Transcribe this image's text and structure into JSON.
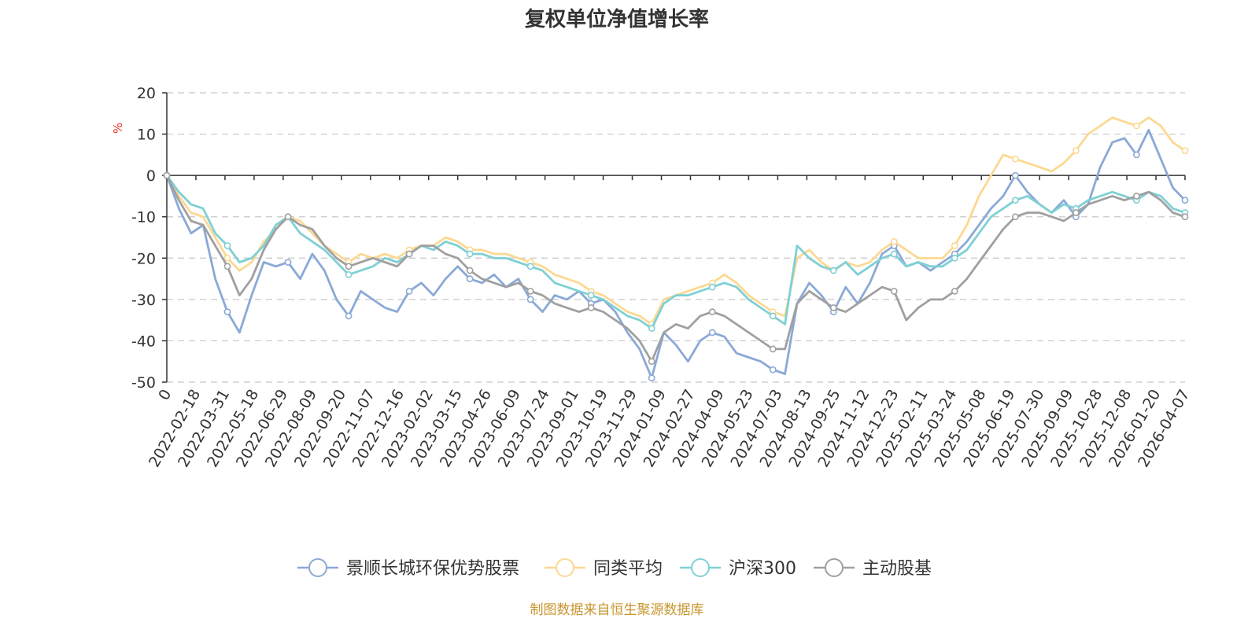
{
  "chart_data": {
    "type": "line",
    "title": "复权单位净值增长率",
    "ylabel": "%",
    "xlabel": "",
    "ylim": [
      -50,
      20
    ],
    "yticks": [
      20,
      10,
      0,
      -10,
      -20,
      -30,
      -40,
      -50
    ],
    "x_tick_labels": [
      "0",
      "2022-02-18",
      "2022-03-31",
      "2022-05-18",
      "2022-06-29",
      "2022-08-09",
      "2022-09-20",
      "2022-11-07",
      "2022-12-16",
      "2023-02-02",
      "2023-03-15",
      "2023-04-26",
      "2023-06-09",
      "2023-07-24",
      "2023-09-01",
      "2023-10-19",
      "2023-11-29",
      "2024-01-09",
      "2024-02-27",
      "2024-04-09",
      "2024-05-23",
      "2024-07-03",
      "2024-08-13",
      "2024-09-25",
      "2024-11-12",
      "2024-12-23",
      "2025-02-11",
      "2025-03-24",
      "2025-05-08",
      "2025-06-19",
      "2025-07-30",
      "2025-09-09",
      "2025-10-28",
      "2025-12-08",
      "2026-01-20",
      "2026-04-07"
    ],
    "grid": true,
    "legend_position": "bottom-center",
    "series": [
      {
        "name": "景顺长城环保优势股票",
        "color": "#8aa9d6",
        "values": [
          0,
          -8,
          -14,
          -12,
          -25,
          -33,
          -38,
          -29,
          -21,
          -22,
          -21,
          -25,
          -19,
          -23,
          -30,
          -34,
          -28,
          -30,
          -32,
          -33,
          -28,
          -26,
          -29,
          -25,
          -22,
          -25,
          -26,
          -24,
          -27,
          -25,
          -30,
          -33,
          -29,
          -30,
          -28,
          -31,
          -30,
          -33,
          -38,
          -42,
          -49,
          -38,
          -41,
          -45,
          -40,
          -38,
          -39,
          -43,
          -44,
          -45,
          -47,
          -48,
          -31,
          -26,
          -29,
          -33,
          -27,
          -31,
          -26,
          -19,
          -17,
          -22,
          -21,
          -23,
          -21,
          -19,
          -16,
          -12,
          -8,
          -5,
          0,
          -4,
          -7,
          -9,
          -6,
          -10,
          -7,
          2,
          8,
          9,
          5,
          11,
          4,
          -3,
          -6
        ]
      },
      {
        "name": "同类平均",
        "color": "#fcd892",
        "values": [
          0,
          -5,
          -9,
          -10,
          -15,
          -20,
          -23,
          -21,
          -16,
          -13,
          -10,
          -11,
          -14,
          -17,
          -19,
          -21,
          -19,
          -20,
          -19,
          -20,
          -18,
          -17,
          -17,
          -15,
          -16,
          -18,
          -18,
          -19,
          -19,
          -20,
          -21,
          -22,
          -24,
          -25,
          -26,
          -28,
          -29,
          -31,
          -33,
          -34,
          -36,
          -30,
          -29,
          -28,
          -27,
          -26,
          -24,
          -26,
          -29,
          -31,
          -33,
          -34,
          -20,
          -18,
          -21,
          -23,
          -21,
          -22,
          -21,
          -18,
          -16,
          -18,
          -20,
          -20,
          -20,
          -17,
          -12,
          -5,
          0,
          5,
          4,
          3,
          2,
          1,
          3,
          6,
          10,
          12,
          14,
          13,
          12,
          14,
          12,
          8,
          6
        ]
      },
      {
        "name": "沪深300",
        "color": "#7fd0d4",
        "values": [
          0,
          -4,
          -7,
          -8,
          -14,
          -17,
          -21,
          -20,
          -17,
          -12,
          -10,
          -14,
          -16,
          -18,
          -21,
          -24,
          -23,
          -22,
          -20,
          -21,
          -19,
          -17,
          -18,
          -16,
          -17,
          -19,
          -19,
          -20,
          -20,
          -21,
          -22,
          -23,
          -26,
          -27,
          -28,
          -29,
          -30,
          -32,
          -34,
          -35,
          -37,
          -31,
          -29,
          -29,
          -28,
          -27,
          -26,
          -27,
          -30,
          -32,
          -34,
          -36,
          -17,
          -20,
          -22,
          -23,
          -21,
          -24,
          -22,
          -20,
          -19,
          -22,
          -21,
          -22,
          -22,
          -20,
          -18,
          -14,
          -10,
          -8,
          -6,
          -5,
          -7,
          -9,
          -7,
          -8,
          -6,
          -5,
          -4,
          -5,
          -6,
          -4,
          -5,
          -8,
          -9
        ]
      },
      {
        "name": "主动股基",
        "color": "#a0a0a0",
        "values": [
          0,
          -6,
          -11,
          -12,
          -17,
          -22,
          -29,
          -25,
          -18,
          -13,
          -10,
          -12,
          -13,
          -17,
          -20,
          -22,
          -21,
          -20,
          -21,
          -22,
          -19,
          -17,
          -17,
          -19,
          -20,
          -23,
          -25,
          -26,
          -27,
          -26,
          -28,
          -29,
          -31,
          -32,
          -33,
          -32,
          -33,
          -35,
          -37,
          -40,
          -45,
          -38,
          -36,
          -37,
          -34,
          -33,
          -34,
          -36,
          -38,
          -40,
          -42,
          -42,
          -31,
          -28,
          -30,
          -32,
          -33,
          -31,
          -29,
          -27,
          -28,
          -35,
          -32,
          -30,
          -30,
          -28,
          -25,
          -21,
          -17,
          -13,
          -10,
          -9,
          -9,
          -10,
          -11,
          -9,
          -7,
          -6,
          -5,
          -6,
          -5,
          -4,
          -6,
          -9,
          -10
        ]
      }
    ]
  },
  "source_note": "制图数据来自恒生聚源数据库"
}
